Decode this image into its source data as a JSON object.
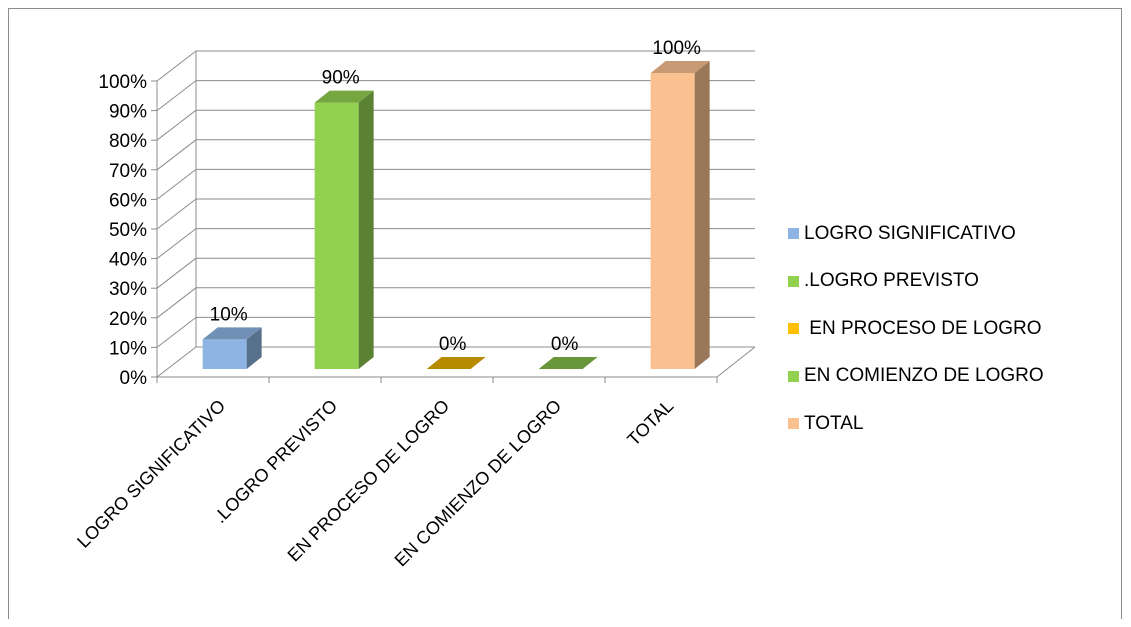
{
  "chart_data": {
    "type": "bar",
    "title": "",
    "xlabel": "",
    "ylabel": "",
    "ylim": [
      0,
      1
    ],
    "y_ticks": [
      "0%",
      "10%",
      "20%",
      "30%",
      "40%",
      "50%",
      "60%",
      "70%",
      "80%",
      "90%",
      "100%"
    ],
    "grid": true,
    "legend_position": "right",
    "categories": [
      "LOGRO SIGNIFICATIVO",
      ".LOGRO PREVISTO",
      "EN PROCESO DE LOGRO",
      "EN COMIENZO DE LOGRO",
      "TOTAL"
    ],
    "values": [
      0.1,
      0.9,
      0.0,
      0.0,
      1.0
    ],
    "data_labels": [
      "10%",
      "90%",
      "0%",
      "0%",
      "100%"
    ],
    "legend": [
      {
        "label": "LOGRO SIGNIFICATIVO",
        "color": "#8db4e2"
      },
      {
        "label": ".LOGRO PREVISTO",
        "color": "#92d050"
      },
      {
        "label": " EN PROCESO DE LOGRO",
        "color": "#ffc000"
      },
      {
        "label": "EN COMIENZO DE LOGRO",
        "color": "#92d050"
      },
      {
        "label": "TOTAL",
        "color": "#fac090"
      }
    ],
    "colors": [
      "#8db4e2",
      "#92d050",
      "#ffc000",
      "#92d050",
      "#fac090"
    ]
  }
}
